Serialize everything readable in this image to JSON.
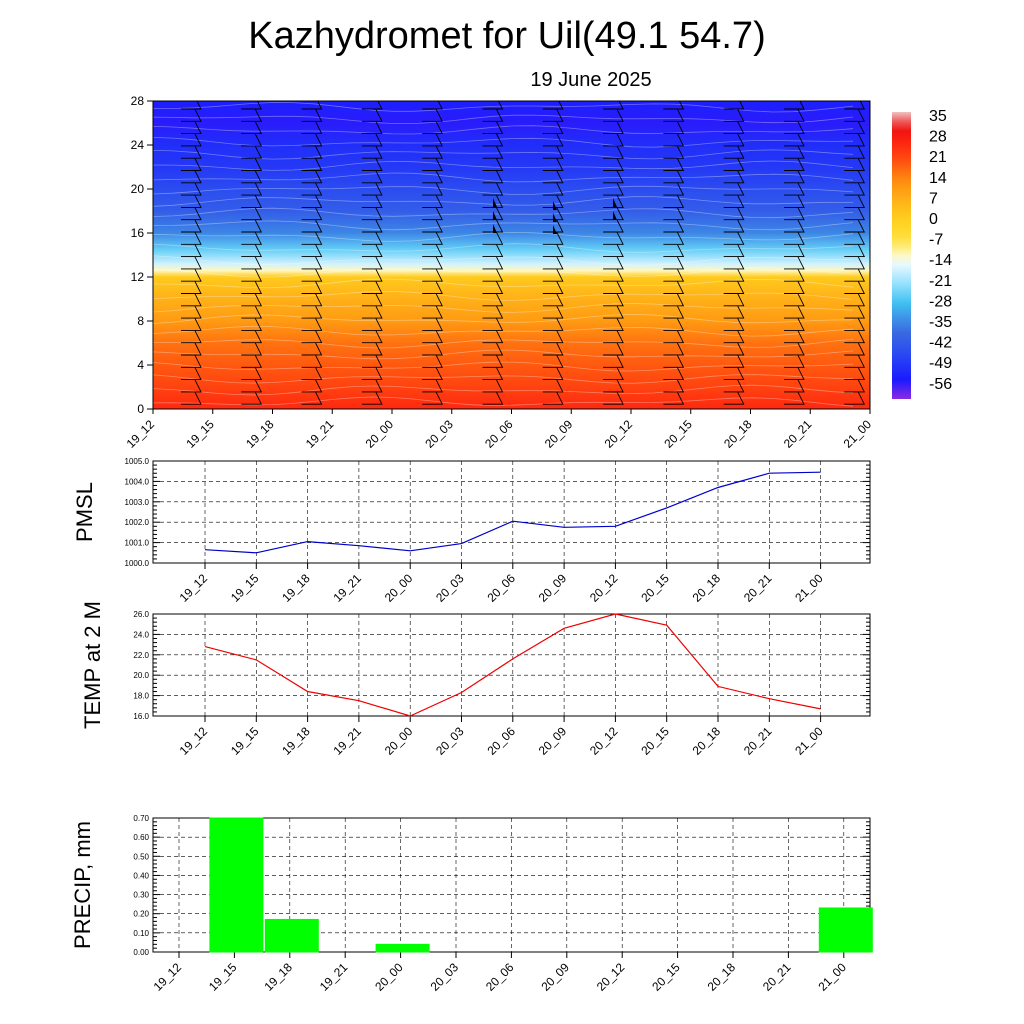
{
  "title": "Kazhydromet for Uil(49.1 54.7)",
  "subtitle": "19 June 2025",
  "chart_data": [
    {
      "type": "heatmap",
      "title": "",
      "x_categories": [
        "19_12",
        "19_15",
        "19_18",
        "19_21",
        "20_00",
        "20_03",
        "20_06",
        "20_09",
        "20_12",
        "20_15",
        "20_18",
        "20_21",
        "21_00"
      ],
      "y_ticks": [
        "28",
        "24",
        "20",
        "16",
        "12",
        "8",
        "4",
        "0"
      ],
      "ylim": [
        0,
        28
      ],
      "colorbar_labels": [
        "35",
        "28",
        "21",
        "14",
        "7",
        "0",
        "-7",
        "-14",
        "-21",
        "-28",
        "-35",
        "-42",
        "-49",
        "-56"
      ],
      "colorbar_range": [
        -63,
        42
      ],
      "colors": {
        "deep_blue": "#1a1aff",
        "mid_blue": "#3b6de0",
        "cyan": "#40c0f0",
        "pale": "#fff8c0",
        "yellow": "#ffd21e",
        "orange": "#ff8c10",
        "red": "#ff2810"
      },
      "profile_level_temps": [
        [
          0,
          30
        ],
        [
          2,
          26
        ],
        [
          4,
          23
        ],
        [
          6,
          20
        ],
        [
          8,
          14
        ],
        [
          10,
          10
        ],
        [
          12,
          4
        ],
        [
          12.6,
          -10
        ],
        [
          13.2,
          -16
        ],
        [
          14.5,
          -25
        ],
        [
          16,
          -35
        ],
        [
          18,
          -42
        ],
        [
          20,
          -46
        ],
        [
          22,
          -50
        ],
        [
          24,
          -52
        ],
        [
          26,
          -57
        ],
        [
          28,
          -55
        ]
      ],
      "wind_barbs": "shown",
      "grid": false
    },
    {
      "type": "line",
      "ylabel": "PMSL",
      "categories": [
        "19_12",
        "19_15",
        "19_18",
        "19_21",
        "20_00",
        "20_03",
        "20_06",
        "20_09",
        "20_12",
        "20_15",
        "20_18",
        "20_21",
        "21_00"
      ],
      "values": [
        1000.65,
        1000.5,
        1001.05,
        1000.85,
        1000.6,
        1000.95,
        1002.05,
        1001.75,
        1001.8,
        1002.7,
        1003.7,
        1004.4,
        1004.45
      ],
      "ylim": [
        1000.0,
        1005.0
      ],
      "yticks": [
        "1000.0",
        "1001.0",
        "1002.0",
        "1003.0",
        "1004.0",
        "1005.0"
      ],
      "line_color": "#0000cc",
      "grid": true
    },
    {
      "type": "line",
      "ylabel": "TEMP at 2 M",
      "categories": [
        "19_12",
        "19_15",
        "19_18",
        "19_21",
        "20_00",
        "20_03",
        "20_06",
        "20_09",
        "20_12",
        "20_15",
        "20_18",
        "20_21",
        "21_00"
      ],
      "values": [
        22.8,
        21.5,
        18.4,
        17.5,
        16.0,
        18.3,
        21.6,
        24.6,
        26.0,
        24.9,
        18.9,
        17.7,
        16.7
      ],
      "ylim": [
        16.0,
        26.0
      ],
      "yticks": [
        "16.0",
        "18.0",
        "20.0",
        "22.0",
        "24.0",
        "26.0"
      ],
      "line_color": "#ee0000",
      "grid": true
    },
    {
      "type": "bar",
      "ylabel": "PRECIP, mm",
      "categories": [
        "19_12",
        "19_15",
        "19_18",
        "19_21",
        "20_00",
        "20_03",
        "20_06",
        "20_09",
        "20_12",
        "20_15",
        "20_18",
        "20_21",
        "21_00"
      ],
      "values": [
        0,
        0.7,
        0.17,
        0,
        0.04,
        0,
        0,
        0,
        0,
        0,
        0,
        0,
        0.23
      ],
      "ylim": [
        0,
        0.7
      ],
      "yticks": [
        "0.00",
        "0.10",
        "0.20",
        "0.30",
        "0.40",
        "0.50",
        "0.60",
        "0.70"
      ],
      "bar_color": "#00ff00",
      "grid": true
    }
  ]
}
